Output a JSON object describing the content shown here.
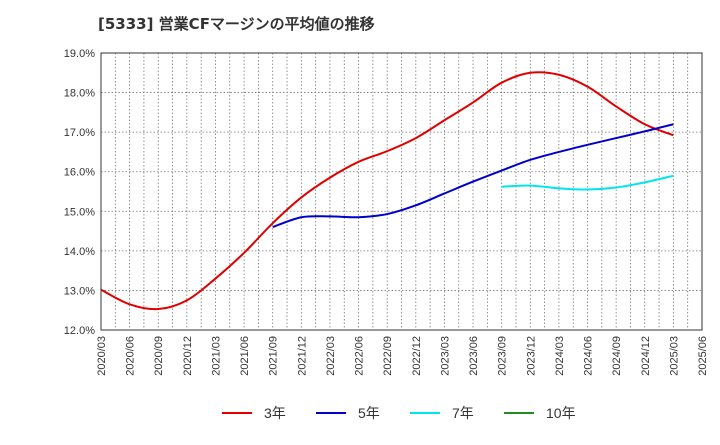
{
  "chart_data": {
    "type": "line",
    "title": "[5333]  営業CFマージンの平均値の推移",
    "xlabel": "",
    "ylabel": "",
    "ylim": [
      12.0,
      19.0
    ],
    "y_ticks": [
      "12.0%",
      "13.0%",
      "14.0%",
      "15.0%",
      "16.0%",
      "17.0%",
      "18.0%",
      "19.0%"
    ],
    "x_ticks": [
      "2020/03",
      "2020/06",
      "2020/09",
      "2020/12",
      "2021/03",
      "2021/06",
      "2021/09",
      "2021/12",
      "2022/03",
      "2022/06",
      "2022/09",
      "2022/12",
      "2023/03",
      "2023/06",
      "2023/09",
      "2023/12",
      "2024/03",
      "2024/06",
      "2024/09",
      "2024/12",
      "2025/03",
      "2025/06"
    ],
    "grid": true,
    "legend_position": "bottom",
    "series": [
      {
        "name": "3年",
        "color": "#e00000",
        "points": [
          {
            "x": "2020/03",
            "y": 13.02
          },
          {
            "x": "2020/06",
            "y": 12.65
          },
          {
            "x": "2020/09",
            "y": 12.53
          },
          {
            "x": "2020/12",
            "y": 12.75
          },
          {
            "x": "2021/03",
            "y": 13.3
          },
          {
            "x": "2021/06",
            "y": 13.95
          },
          {
            "x": "2021/09",
            "y": 14.7
          },
          {
            "x": "2021/12",
            "y": 15.35
          },
          {
            "x": "2022/03",
            "y": 15.85
          },
          {
            "x": "2022/06",
            "y": 16.25
          },
          {
            "x": "2022/09",
            "y": 16.52
          },
          {
            "x": "2022/12",
            "y": 16.85
          },
          {
            "x": "2023/03",
            "y": 17.3
          },
          {
            "x": "2023/06",
            "y": 17.75
          },
          {
            "x": "2023/09",
            "y": 18.25
          },
          {
            "x": "2023/12",
            "y": 18.5
          },
          {
            "x": "2024/03",
            "y": 18.45
          },
          {
            "x": "2024/06",
            "y": 18.15
          },
          {
            "x": "2024/09",
            "y": 17.65
          },
          {
            "x": "2024/12",
            "y": 17.2
          },
          {
            "x": "2025/03",
            "y": 16.92
          }
        ]
      },
      {
        "name": "5年",
        "color": "#0000cc",
        "points": [
          {
            "x": "2021/09",
            "y": 14.6
          },
          {
            "x": "2021/12",
            "y": 14.85
          },
          {
            "x": "2022/03",
            "y": 14.87
          },
          {
            "x": "2022/06",
            "y": 14.85
          },
          {
            "x": "2022/09",
            "y": 14.93
          },
          {
            "x": "2022/12",
            "y": 15.15
          },
          {
            "x": "2023/03",
            "y": 15.45
          },
          {
            "x": "2023/06",
            "y": 15.75
          },
          {
            "x": "2023/09",
            "y": 16.03
          },
          {
            "x": "2023/12",
            "y": 16.3
          },
          {
            "x": "2024/03",
            "y": 16.5
          },
          {
            "x": "2024/06",
            "y": 16.68
          },
          {
            "x": "2024/09",
            "y": 16.85
          },
          {
            "x": "2024/12",
            "y": 17.02
          },
          {
            "x": "2025/03",
            "y": 17.2
          }
        ]
      },
      {
        "name": "7年",
        "color": "#00e5ee",
        "points": [
          {
            "x": "2023/09",
            "y": 15.62
          },
          {
            "x": "2023/12",
            "y": 15.65
          },
          {
            "x": "2024/03",
            "y": 15.58
          },
          {
            "x": "2024/06",
            "y": 15.55
          },
          {
            "x": "2024/09",
            "y": 15.6
          },
          {
            "x": "2024/12",
            "y": 15.73
          },
          {
            "x": "2025/03",
            "y": 15.9
          }
        ]
      },
      {
        "name": "10年",
        "color": "#228b22",
        "points": []
      }
    ]
  }
}
